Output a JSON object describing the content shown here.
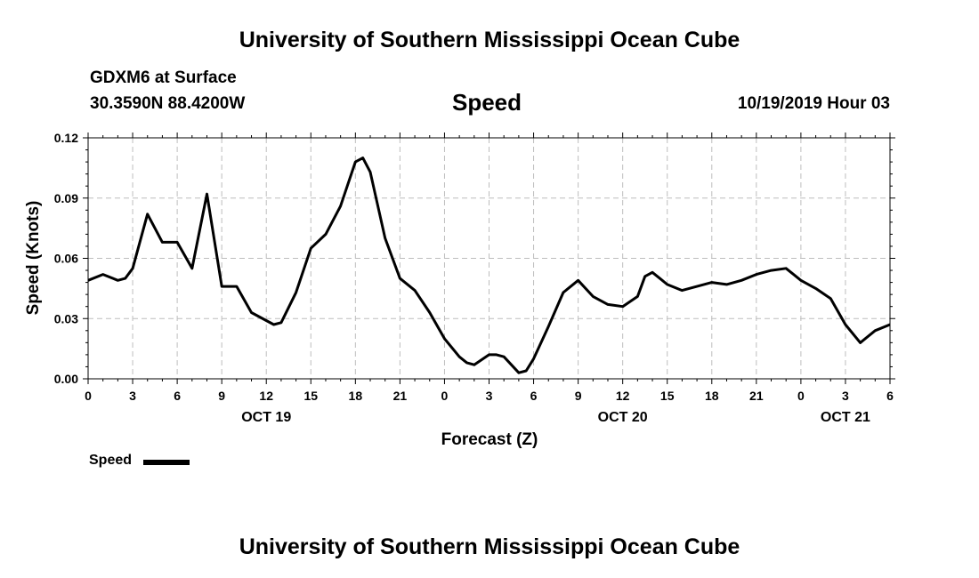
{
  "header": {
    "title_top": "University of Southern Mississippi Ocean Cube",
    "title_bottom": "University of Southern Mississippi Ocean Cube",
    "model_line": "GDXM6 at Surface",
    "location_line": "30.3590N 88.4200W",
    "variable_title": "Speed",
    "valid_time": "10/19/2019 Hour 03"
  },
  "legend": {
    "label": "Speed"
  },
  "chart_data": {
    "type": "line",
    "title": "Speed",
    "xlabel": "Forecast (Z)",
    "ylabel": "Speed (Knots)",
    "xlim": [
      0,
      54
    ],
    "ylim": [
      0,
      0.12
    ],
    "y_ticks": [
      "0.00",
      "0.03",
      "0.06",
      "0.09",
      "0.12"
    ],
    "y_tick_values": [
      0,
      0.03,
      0.06,
      0.09,
      0.12
    ],
    "x_tick_labels": [
      "0",
      "3",
      "6",
      "9",
      "12",
      "15",
      "18",
      "21",
      "0",
      "3",
      "6",
      "9",
      "12",
      "15",
      "18",
      "21",
      "0",
      "3",
      "6"
    ],
    "x_tick_values": [
      0,
      3,
      6,
      9,
      12,
      15,
      18,
      21,
      24,
      27,
      30,
      33,
      36,
      39,
      42,
      45,
      48,
      51,
      54
    ],
    "date_labels": [
      {
        "label": "OCT 19",
        "hour": 12
      },
      {
        "label": "OCT 20",
        "hour": 36
      },
      {
        "label": "OCT 21",
        "hour": 51
      }
    ],
    "grid": true,
    "series": [
      {
        "name": "Speed",
        "color": "#000000",
        "points": [
          [
            0,
            0.049
          ],
          [
            1,
            0.052
          ],
          [
            2,
            0.049
          ],
          [
            2.5,
            0.05
          ],
          [
            3,
            0.055
          ],
          [
            4,
            0.082
          ],
          [
            5,
            0.068
          ],
          [
            6,
            0.068
          ],
          [
            7,
            0.055
          ],
          [
            8,
            0.092
          ],
          [
            9,
            0.046
          ],
          [
            10,
            0.046
          ],
          [
            11,
            0.033
          ],
          [
            12,
            0.029
          ],
          [
            12.5,
            0.027
          ],
          [
            13,
            0.028
          ],
          [
            14,
            0.043
          ],
          [
            15,
            0.065
          ],
          [
            16,
            0.072
          ],
          [
            17,
            0.086
          ],
          [
            18,
            0.108
          ],
          [
            18.5,
            0.11
          ],
          [
            19,
            0.103
          ],
          [
            20,
            0.07
          ],
          [
            21,
            0.05
          ],
          [
            22,
            0.044
          ],
          [
            23,
            0.033
          ],
          [
            24,
            0.02
          ],
          [
            25,
            0.011
          ],
          [
            25.5,
            0.008
          ],
          [
            26,
            0.007
          ],
          [
            27,
            0.012
          ],
          [
            27.5,
            0.012
          ],
          [
            28,
            0.011
          ],
          [
            29,
            0.003
          ],
          [
            29.5,
            0.004
          ],
          [
            30,
            0.01
          ],
          [
            31,
            0.026
          ],
          [
            32,
            0.043
          ],
          [
            33,
            0.049
          ],
          [
            34,
            0.041
          ],
          [
            35,
            0.037
          ],
          [
            36,
            0.036
          ],
          [
            37,
            0.041
          ],
          [
            37.5,
            0.051
          ],
          [
            38,
            0.053
          ],
          [
            38.5,
            0.05
          ],
          [
            39,
            0.047
          ],
          [
            40,
            0.044
          ],
          [
            41,
            0.046
          ],
          [
            42,
            0.048
          ],
          [
            43,
            0.047
          ],
          [
            44,
            0.049
          ],
          [
            45,
            0.052
          ],
          [
            46,
            0.054
          ],
          [
            47,
            0.055
          ],
          [
            48,
            0.049
          ],
          [
            49,
            0.045
          ],
          [
            50,
            0.04
          ],
          [
            51,
            0.027
          ],
          [
            52,
            0.018
          ],
          [
            53,
            0.024
          ],
          [
            54,
            0.027
          ]
        ]
      }
    ]
  }
}
